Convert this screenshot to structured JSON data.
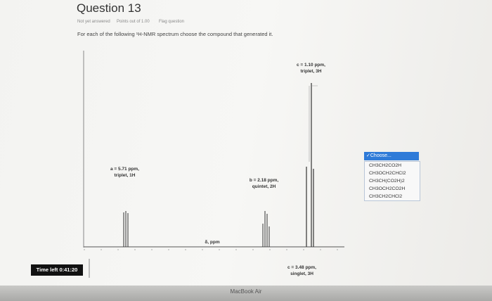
{
  "header": {
    "title": "Question 13",
    "status": "Not yet answered",
    "points": "Points out of 1.00",
    "flag": "Flag question"
  },
  "prompt": "For each of the following ¹H-NMR spectrum choose the compound that generated it.",
  "spectrum": {
    "axis_label": "δ, ppm",
    "labels": [
      {
        "shift": "c = 1.10 ppm,",
        "multiplicity": "triplet, 3H"
      },
      {
        "shift": "a = 5.71 ppm,",
        "multiplicity": "triplet, 1H"
      },
      {
        "shift": "b = 2.18 ppm,",
        "multiplicity": "quintet, 2H"
      },
      {
        "shift": "c = 3.48 ppm,",
        "multiplicity": "singlet, 3H"
      }
    ]
  },
  "dropdown": {
    "selected": "✓Choose...",
    "options": [
      "CH3CH2CO2H",
      "CH3OCH2CHCl2",
      "CH3CH(CO2H)2",
      "CH3OCH2CO2H",
      "CH3CH2CHCl2"
    ]
  },
  "timer": "Time left 0:41:20",
  "brand": "MacBook Air"
}
